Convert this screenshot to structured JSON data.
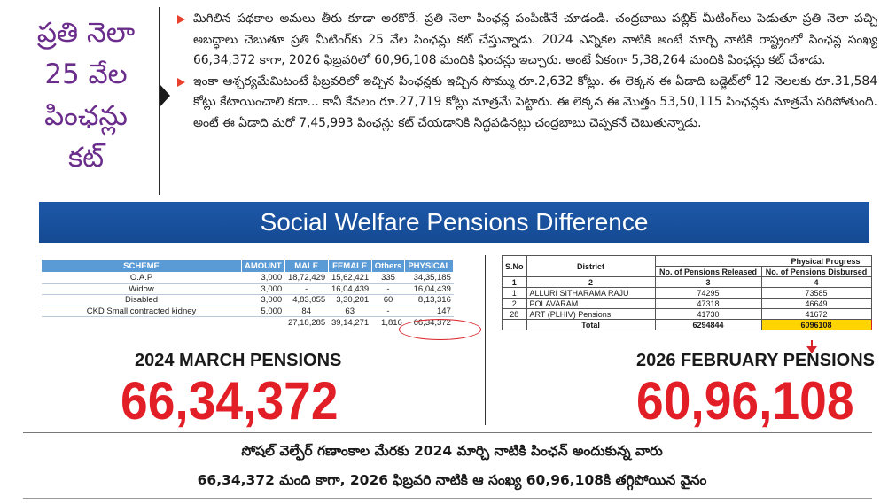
{
  "side_title": {
    "line1": "ప్రతి నెలా",
    "line2": "25 వేల",
    "line3": "పింఛన్లు",
    "line4": "కట్"
  },
  "paragraphs": [
    "మిగిలిన పథకాల అమలు తీరు కూడా అరకొరే. ప్రతి నెలా పింఛన్ల పంపిణీనే చూడండి. చంద్రబాబు పబ్లిక్ మీటింగ్‌లు పెడుతూ ప్రతి నెలా పచ్చి అబద్ధాలు చెబుతూ ప్రతి మీటింగ్‌కు 25 వేల పింఛన్లు కట్ చేస్తున్నాడు. 2024 ఎన్నికల నాటికి అంటే మార్చి నాటికి రాష్ట్రంలో పింఛన్ల సంఖ్య 66,34,372 కాగా, 2026 ఫిబ్రవరిలో 60,96,108 మందికి ఫించన్లు ఇచ్చారు. అంటే ఏకంగా 5,38,264 మందికి పింఛన్లు కట్ చేశాడు.",
    "ఇంకా ఆశ్చర్యమేమిటంటే ఫిబ్రవరిలో ఇచ్చిన పింఛన్లకు ఇచ్చిన సొమ్ము రూ.2,632 కోట్లు. ఈ లెక్కన ఈ ఏడాది బడ్జెట్‌లో 12 నెలలకు రూ.31,584 కోట్లు కేటాయించాలి కదా... కానీ కేవలం రూ.27,719 కోట్లు మాత్రమే పెట్టారు. ఈ లెక్కన ఈ మొత్తం 53,50,115 పింఛన్లకు మాత్రమే సరిపోతుంది. అంటే ఈ ఏడాది మరో 7,45,993 పింఛన్లు కట్ చేయడానికి సిద్ధపడినట్లు చంద్రబాబు చెప్పకనే చెబుతున్నాడు."
  ],
  "banner": "Social Welfare Pensions Difference",
  "left_table": {
    "headers": [
      "SCHEME",
      "AMOUNT",
      "MALE",
      "FEMALE",
      "Others",
      "PHYSICAL"
    ],
    "rows": [
      [
        "O.A.P",
        "3,000",
        "18,72,429",
        "15,62,421",
        "335",
        "34,35,185"
      ],
      [
        "Widow",
        "3,000",
        "-",
        "16,04,439",
        "-",
        "16,04,439"
      ],
      [
        "Disabled",
        "3,000",
        "4,83,055",
        "3,30,201",
        "60",
        "8,13,316"
      ],
      [
        "CKD Small contracted kidney",
        "5,000",
        "84",
        "63",
        "-",
        "147"
      ]
    ],
    "total": [
      "",
      "",
      "27,18,285",
      "39,14,271",
      "1,816",
      "66,34,372"
    ]
  },
  "right_table": {
    "h_sno": "S.No",
    "h_district": "District",
    "h_group": "Physical Progress",
    "h_released": "No. of Pensions Released",
    "h_disbursed": "No. of Pensions Disbursed",
    "index_row": [
      "1",
      "2",
      "3",
      "4"
    ],
    "rows": [
      [
        "1",
        "ALLURI SITHARAMA RAJU",
        "74295",
        "73585"
      ],
      [
        "2",
        "POLAVARAM",
        "47318",
        "46649"
      ],
      [
        "28",
        "ART (PLHIV) Pensions",
        "41730",
        "41672"
      ]
    ],
    "total": [
      "",
      "Total",
      "6294844",
      "6096108"
    ]
  },
  "left_caption": "2024 MARCH PENSIONS",
  "left_number": "66,34,372",
  "right_caption": "2026 FEBRUARY PENSIONS",
  "right_number": "60,96,108",
  "footer": {
    "line1": "సోషల్ వెల్ఫేర్ గణాంకాల మేరకు 2024 మార్చి నాటికి పింఛన్ అందుకున్న వారు",
    "line2": "66,34,372 మంది కాగా, 2026 ఫిబ్రవరి నాటికి ఆ సంఖ్య 60,96,108కి తగ్గిపోయిన వైనం"
  },
  "colors": {
    "title_purple": "#6b2d8c",
    "banner_blue": "#1d58a8",
    "number_red": "#e21e26",
    "highlight_yellow": "#ffd400",
    "bullet_red": "#e8422f",
    "table_header_blue": "#5b9bd5"
  }
}
